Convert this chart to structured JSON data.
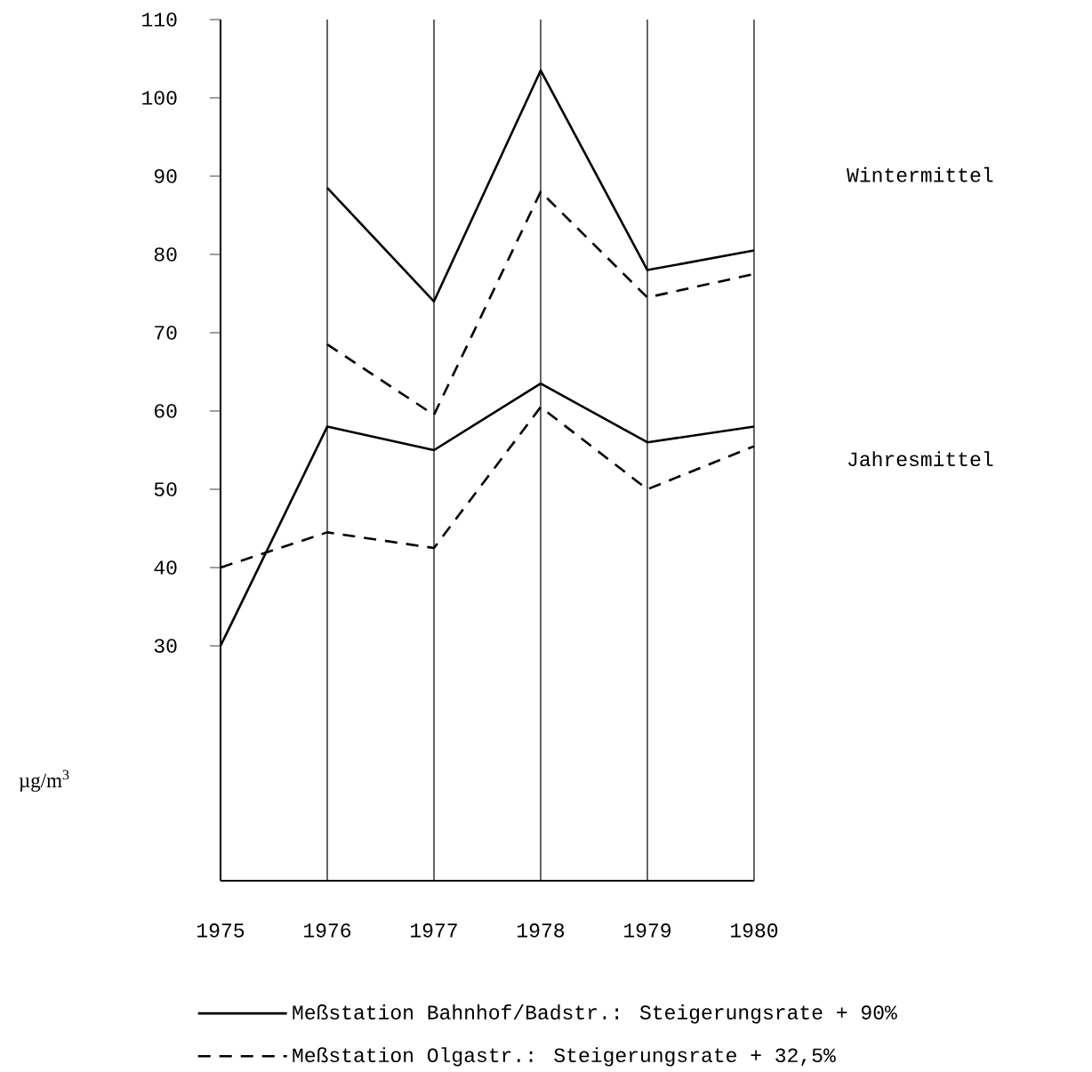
{
  "chart_data": {
    "type": "line",
    "ylabel": "µg/m$^{3}$",
    "categories": [
      "1975",
      "1976",
      "1977",
      "1978",
      "1979",
      "1980"
    ],
    "series": [
      {
        "name": "Meßstation Bahnhof/Badstr.: Steigerungsrate + 90%",
        "color": "#000000",
        "line_style": "solid",
        "values": [
          null,
          88.5,
          74,
          103.5,
          78,
          80.5
        ]
      },
      {
        "color": "#000000",
        "line_style": "solid",
        "values": [
          30,
          58,
          55,
          63.5,
          56,
          58
        ]
      },
      {
        "name": "Meßstation Olgastr.: Steigerungsrate + 32,5%",
        "color": "#000000",
        "line_style": "dashed",
        "values": [
          null,
          68.5,
          59.5,
          88,
          74.5,
          77.5
        ]
      },
      {
        "color": "#000000",
        "line_style": "dashed",
        "values": [
          40,
          44.5,
          42.5,
          60.5,
          50,
          55.5
        ]
      }
    ],
    "ylim": [
      0,
      110
    ],
    "yticks": [
      30,
      40,
      50,
      60,
      70,
      80,
      90,
      100,
      110
    ],
    "annotations": [
      "Wintermittel",
      "Jahresmittel"
    ],
    "grid": "x",
    "legend": "bottom"
  }
}
